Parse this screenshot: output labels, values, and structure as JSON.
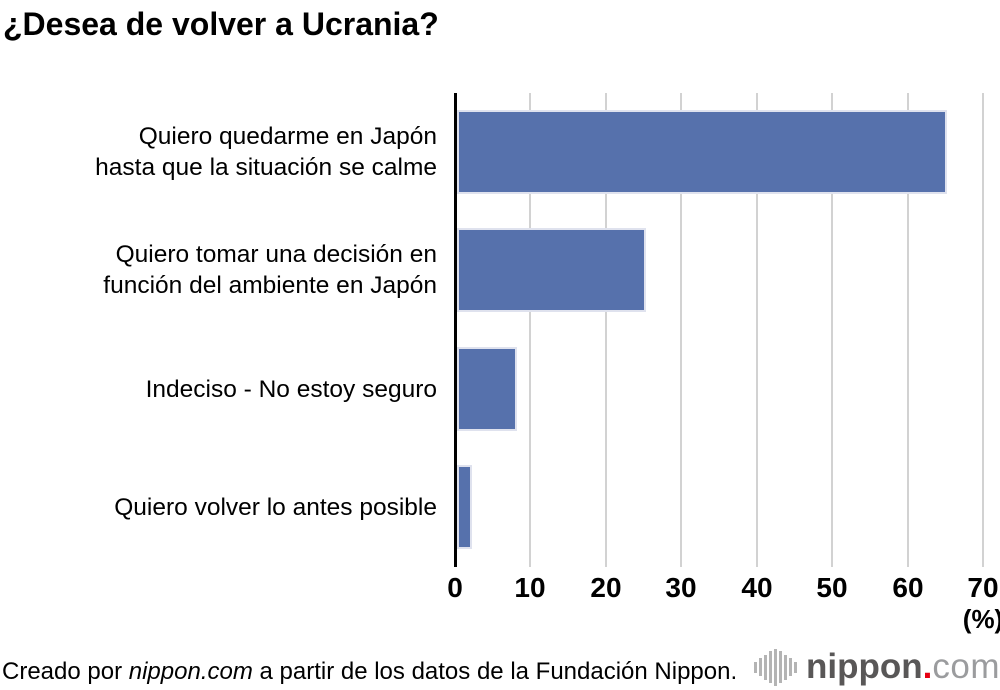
{
  "title": "¿Desea de volver a Ucrania?",
  "chart_data": {
    "type": "bar",
    "orientation": "horizontal",
    "title": "¿Desea de volver a Ucrania?",
    "categories": [
      "Quiero quedarme en Japón hasta que la situación se calme",
      "Quiero tomar una decisión en función del ambiente en Japón",
      "Indeciso - No estoy seguro",
      "Quiero volver lo antes posible"
    ],
    "category_lines": [
      [
        "Quiero quedarme en Japón",
        "hasta que la situación se calme"
      ],
      [
        "Quiero tomar una decisión en",
        "función del ambiente en Japón"
      ],
      [
        "Indeciso - No estoy seguro"
      ],
      [
        "Quiero volver lo antes posible"
      ]
    ],
    "values": [
      65,
      25,
      8,
      2
    ],
    "xlabel": "(%)",
    "xlim": [
      0,
      70
    ],
    "xticks": [
      0,
      10,
      20,
      30,
      40,
      50,
      60,
      70
    ],
    "grid": true,
    "legend": "none"
  },
  "colors": {
    "bar": "#5671ac",
    "bar_edge": "#dfe2ee",
    "gridline": "#d2d2d2",
    "axis": "#000000",
    "logo_dark_gray": "#595757",
    "logo_light_gray": "#9b9c9e",
    "logo_red": "#e60012",
    "logo_icon_gray": "#b4b4b4"
  },
  "footer": {
    "credit_prefix": "Creado por ",
    "credit_brand": "nippon.com",
    "credit_suffix": " a partir de los datos de la Fundación Nippon."
  },
  "logo": {
    "bold_part": "nippon",
    "dot": ".",
    "light_part": "com"
  }
}
